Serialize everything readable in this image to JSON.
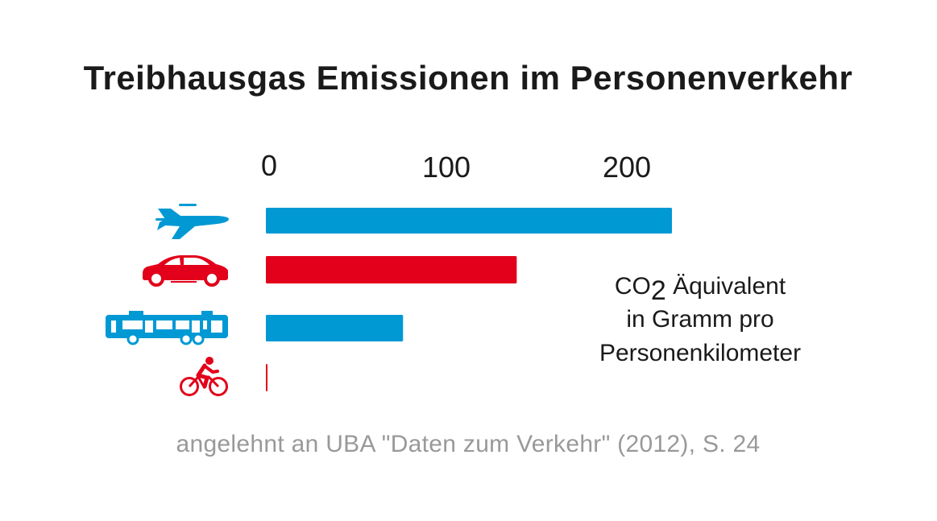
{
  "chart_data": {
    "type": "bar",
    "orientation": "horizontal",
    "title": "Treibhausgas Emissionen im Personenverkehr",
    "categories": [
      "airplane-icon",
      "car-icon",
      "bus-icon",
      "bicycle-icon"
    ],
    "values": [
      225,
      139,
      76,
      0.5
    ],
    "colors": [
      "#0099d4",
      "#e2001a",
      "#0099d4",
      "#e2001a"
    ],
    "xlim": [
      0,
      230
    ],
    "ticks": [
      0,
      100,
      200
    ],
    "tick_labels": [
      "0",
      "100",
      "200"
    ],
    "xaxis_position": "top",
    "grid": false,
    "legend": "none",
    "unit_note": {
      "line1_prefix": "CO",
      "line1_sub": "2",
      "line1_suffix": " Äquivalent",
      "line2": "in Gramm pro",
      "line3": "Personenkilometer"
    },
    "source": "angelehnt an UBA \"Daten zum Verkehr\" (2012), S. 24"
  }
}
